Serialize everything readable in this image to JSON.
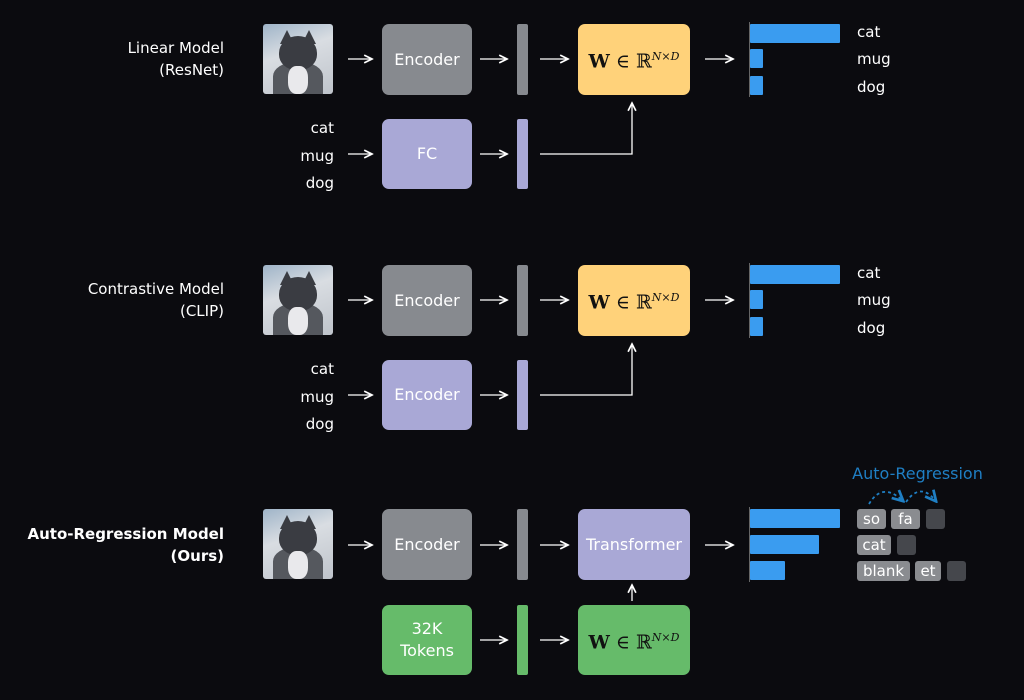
{
  "colors": {
    "background": "#0b0b0f",
    "encoder_gray": "#878a8f",
    "text_purple": "#a9a8d6",
    "weight_yellow": "#ffd27a",
    "token_green": "#66bb6a",
    "bar_blue": "#3a9cf0",
    "auto_regression_blue": "#1f7fc4"
  },
  "rows": [
    {
      "title_line1": "Linear Model",
      "title_line2": "(ResNet)",
      "image_encoder": "Encoder",
      "text_encoder": "FC",
      "weight": {
        "symbol": "W ∈ ℝ",
        "superscript": "N×D"
      },
      "text_inputs": [
        "cat",
        "mug",
        "dog"
      ],
      "outputs": [
        "cat",
        "mug",
        "dog"
      ],
      "scores": [
        1.0,
        0.15,
        0.15
      ]
    },
    {
      "title_line1": "Contrastive Model",
      "title_line2": "(CLIP)",
      "image_encoder": "Encoder",
      "text_encoder": "Encoder",
      "weight": {
        "symbol": "W ∈ ℝ",
        "superscript": "N×D"
      },
      "text_inputs": [
        "cat",
        "mug",
        "dog"
      ],
      "outputs": [
        "cat",
        "mug",
        "dog"
      ],
      "scores": [
        1.0,
        0.15,
        0.15
      ]
    },
    {
      "title_line1": "Auto-Regression Model",
      "title_line2": "(Ours)",
      "image_encoder": "Encoder",
      "decoder": "Transformer",
      "tokens_box": "32K Tokens",
      "weight": {
        "symbol": "W ∈ ℝ",
        "superscript": "N×D"
      },
      "scores": [
        1.0,
        0.77,
        0.38
      ],
      "auto_regression_label": "Auto-Regression",
      "token_rows": [
        [
          "so",
          "fa",
          ""
        ],
        [
          "cat",
          ""
        ],
        [
          "blank",
          "et",
          ""
        ]
      ]
    }
  ]
}
